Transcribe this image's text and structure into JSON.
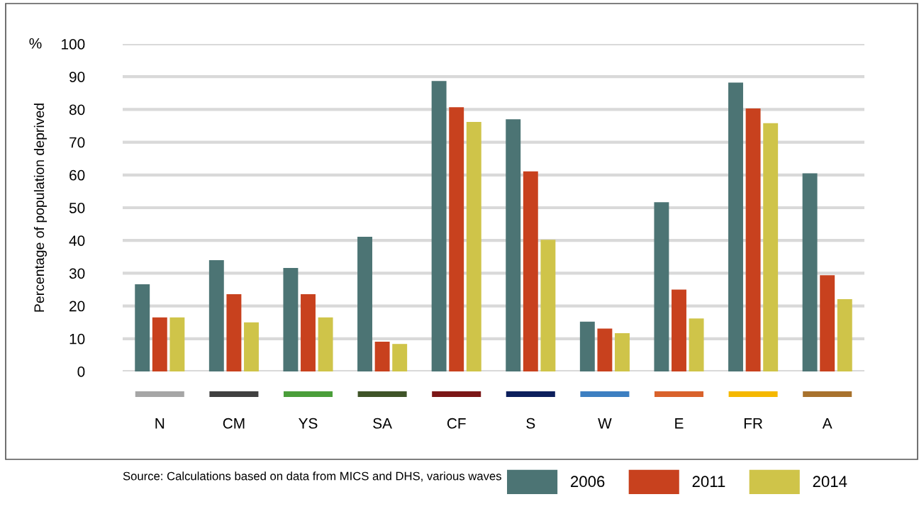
{
  "chart_data": {
    "type": "bar",
    "ylabel": "Percentage of population deprived",
    "categories": [
      "N",
      "CM",
      "YS",
      "SA",
      "CF",
      "S",
      "W",
      "E",
      "FR",
      "A"
    ],
    "series": [
      {
        "name": "2006",
        "color": "#4c7474",
        "values": [
          26.6,
          34.0,
          31.6,
          41.1,
          88.7,
          77.0,
          15.2,
          51.7,
          88.2,
          60.5
        ]
      },
      {
        "name": "2011",
        "color": "#c8411e",
        "values": [
          16.5,
          23.6,
          23.6,
          9.1,
          80.7,
          61.1,
          13.1,
          25.0,
          80.3,
          29.4
        ]
      },
      {
        "name": "2014",
        "color": "#cfc449",
        "values": [
          16.5,
          15.0,
          16.5,
          8.4,
          76.2,
          40.2,
          11.7,
          16.2,
          75.8,
          22.1
        ]
      }
    ],
    "ylim": [
      0,
      100
    ],
    "yticks": [
      0,
      10,
      20,
      30,
      40,
      50,
      60,
      70,
      80,
      90,
      100
    ],
    "grid": "y",
    "legend": "bottom right",
    "annotations": [
      "%",
      "Source: Calculations based on data from MICS and DHS, various waves"
    ]
  }
}
